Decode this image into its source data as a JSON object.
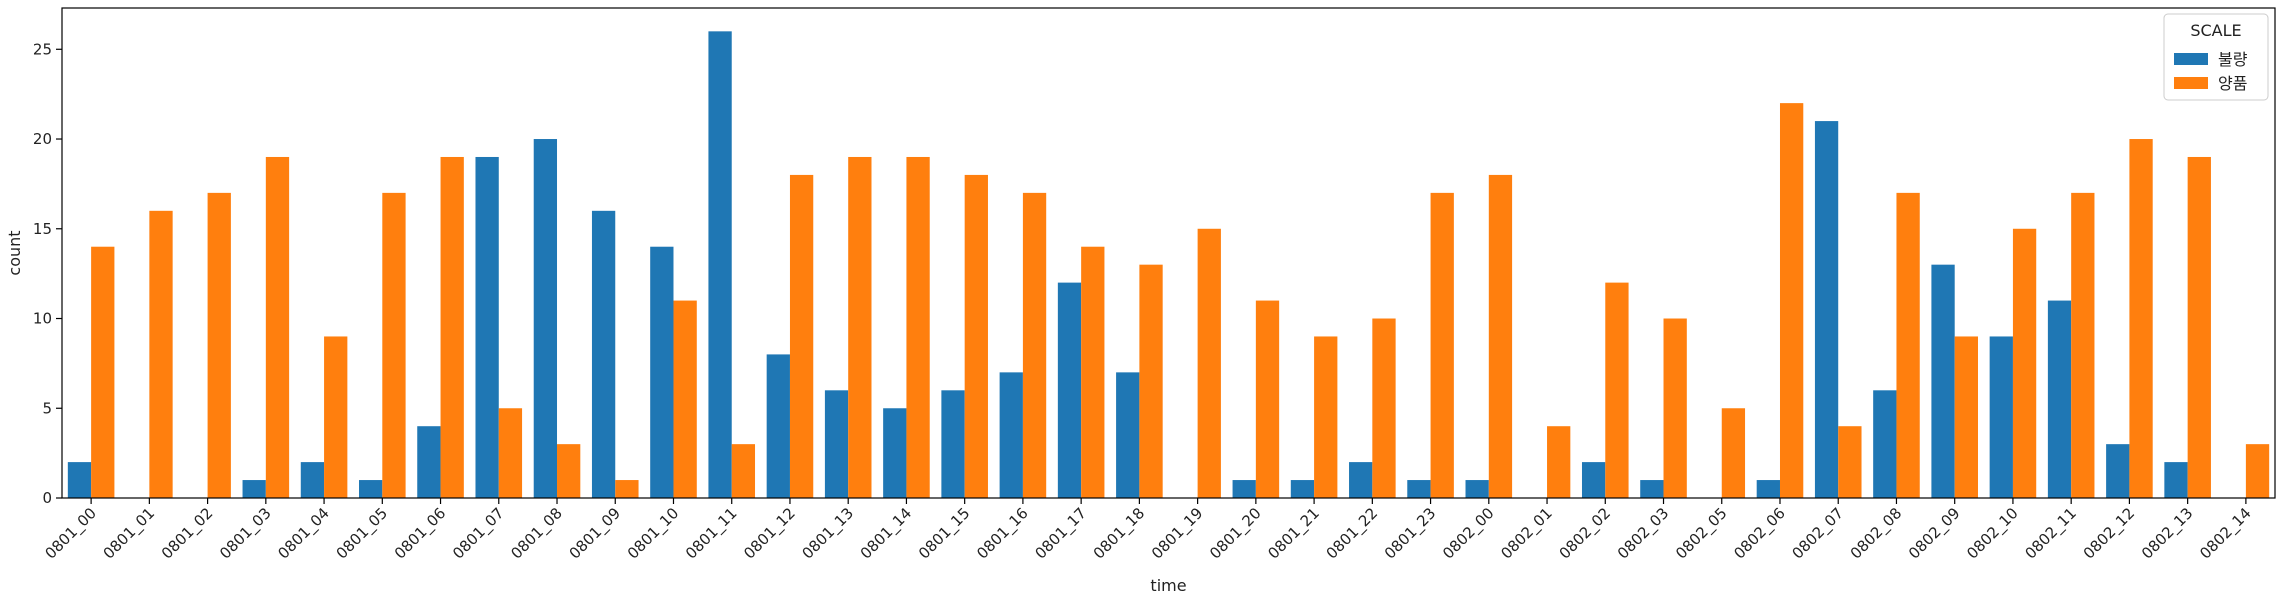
{
  "chart_data": {
    "type": "bar",
    "title": "",
    "xlabel": "time",
    "ylabel": "count",
    "ylim": [
      0,
      27.3
    ],
    "yticks": [
      0,
      5,
      10,
      15,
      20,
      25
    ],
    "grid": false,
    "legend": {
      "title": "SCALE",
      "position": "top-right"
    },
    "categories": [
      "0801_00",
      "0801_01",
      "0801_02",
      "0801_03",
      "0801_04",
      "0801_05",
      "0801_06",
      "0801_07",
      "0801_08",
      "0801_09",
      "0801_10",
      "0801_11",
      "0801_12",
      "0801_13",
      "0801_14",
      "0801_15",
      "0801_16",
      "0801_17",
      "0801_18",
      "0801_19",
      "0801_20",
      "0801_21",
      "0801_22",
      "0801_23",
      "0802_00",
      "0802_01",
      "0802_02",
      "0802_03",
      "0802_05",
      "0802_06",
      "0802_07",
      "0802_08",
      "0802_09",
      "0802_10",
      "0802_11",
      "0802_12",
      "0802_13",
      "0802_14"
    ],
    "series": [
      {
        "name": "불량",
        "color": "#1f77b4",
        "values": [
          2,
          0,
          0,
          1,
          2,
          1,
          4,
          19,
          20,
          16,
          14,
          26,
          8,
          6,
          5,
          6,
          7,
          12,
          7,
          0,
          1,
          1,
          2,
          1,
          1,
          0,
          2,
          1,
          0,
          1,
          21,
          6,
          13,
          9,
          11,
          3,
          2,
          0
        ]
      },
      {
        "name": "양품",
        "color": "#ff7f0e",
        "values": [
          14,
          16,
          17,
          19,
          9,
          17,
          19,
          5,
          3,
          1,
          11,
          3,
          18,
          19,
          19,
          18,
          17,
          14,
          13,
          15,
          11,
          9,
          10,
          17,
          18,
          4,
          12,
          10,
          5,
          22,
          4,
          17,
          9,
          15,
          17,
          20,
          19,
          3
        ]
      }
    ]
  }
}
